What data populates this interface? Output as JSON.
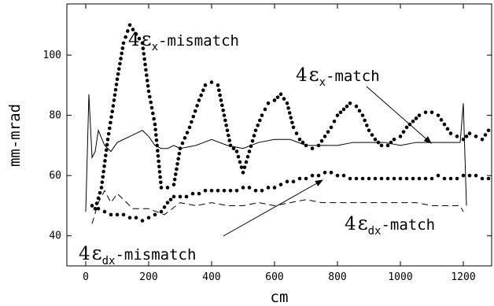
{
  "chart_data": {
    "type": "line",
    "xlabel": "cm",
    "ylabel": "mm-mrad",
    "xlim": [
      -60,
      1290
    ],
    "ylim": [
      30,
      117
    ],
    "xticks": [
      0,
      200,
      400,
      600,
      800,
      1000,
      1200
    ],
    "yticks": [
      40,
      60,
      80,
      100
    ],
    "series": [
      {
        "style": "solid",
        "x": [
          0,
          10,
          20,
          30,
          40,
          60,
          80,
          100,
          120,
          140,
          160,
          180,
          200,
          220,
          240,
          260,
          280,
          300,
          350,
          400,
          450,
          500,
          550,
          600,
          650,
          700,
          750,
          800,
          850,
          900,
          950,
          1000,
          1050,
          1100,
          1150,
          1190,
          1200,
          1210
        ],
        "y": [
          48,
          87,
          66,
          68,
          75,
          70,
          68,
          71,
          72,
          73,
          74,
          75,
          73,
          70,
          69,
          69,
          70,
          69,
          70,
          72,
          70,
          69,
          71,
          72,
          72,
          70,
          70,
          70,
          71,
          71,
          71,
          70,
          71,
          71,
          71,
          71,
          84,
          50
        ]
      },
      {
        "style": "dashed",
        "x": [
          20,
          40,
          60,
          80,
          100,
          150,
          200,
          250,
          300,
          350,
          400,
          450,
          500,
          550,
          600,
          650,
          700,
          750,
          800,
          850,
          900,
          950,
          1000,
          1050,
          1100,
          1150,
          1190,
          1200
        ],
        "y": [
          44,
          51,
          55,
          51,
          54,
          49,
          49,
          47,
          51,
          50,
          51,
          50,
          50,
          51,
          50,
          51,
          52,
          51,
          51,
          51,
          51,
          51,
          51,
          51,
          50,
          50,
          50,
          48
        ]
      },
      {
        "style": "dots",
        "x": [
          30,
          50,
          70,
          90,
          100,
          120,
          140,
          160,
          180,
          200,
          220,
          240,
          260,
          280,
          300,
          330,
          360,
          380,
          400,
          420,
          440,
          460,
          480,
          500,
          520,
          540,
          560,
          580,
          600,
          620,
          640,
          660,
          680,
          700,
          720,
          740,
          760,
          780,
          800,
          820,
          840,
          860,
          880,
          900,
          920,
          940,
          960,
          980,
          1000,
          1020,
          1040,
          1060,
          1080,
          1100,
          1120,
          1140,
          1160,
          1180,
          1200,
          1220,
          1240,
          1260,
          1280
        ],
        "y": [
          49,
          56,
          72,
          85,
          92,
          104,
          110,
          107,
          104,
          88,
          77,
          56,
          56,
          57,
          69,
          76,
          85,
          90,
          91,
          90,
          80,
          70,
          68,
          61,
          68,
          75,
          80,
          84,
          85,
          87,
          84,
          76,
          72,
          70,
          69,
          70,
          73,
          76,
          80,
          82,
          84,
          83,
          80,
          75,
          72,
          70,
          70,
          72,
          73,
          76,
          78,
          80,
          81,
          81,
          80,
          77,
          74,
          73,
          72,
          74,
          73,
          72,
          75
        ]
      },
      {
        "style": "dots",
        "x": [
          20,
          40,
          60,
          80,
          100,
          120,
          140,
          160,
          180,
          200,
          220,
          240,
          260,
          280,
          300,
          320,
          340,
          360,
          380,
          400,
          420,
          440,
          460,
          480,
          500,
          520,
          540,
          560,
          580,
          600,
          620,
          640,
          660,
          680,
          700,
          720,
          740,
          760,
          780,
          800,
          820,
          840,
          860,
          880,
          900,
          920,
          940,
          960,
          980,
          1000,
          1020,
          1040,
          1060,
          1080,
          1100,
          1120,
          1140,
          1160,
          1180,
          1200,
          1220,
          1240,
          1260,
          1280
        ],
        "y": [
          50,
          49,
          48,
          47,
          47,
          47,
          46,
          46,
          45,
          46,
          47,
          48,
          51,
          53,
          53,
          53,
          54,
          54,
          55,
          55,
          55,
          55,
          55,
          55,
          56,
          56,
          55,
          55,
          56,
          56,
          57,
          58,
          58,
          59,
          59,
          60,
          60,
          61,
          61,
          60,
          60,
          59,
          59,
          59,
          59,
          59,
          59,
          59,
          59,
          59,
          59,
          59,
          59,
          59,
          59,
          60,
          59,
          59,
          59,
          60,
          60,
          60,
          59,
          59
        ]
      }
    ],
    "annotations": [
      {
        "prefix": "4",
        "greek": "ε",
        "sub": "x",
        "suffix": "-mismatch",
        "arrow": false
      },
      {
        "prefix": "4",
        "greek": "ε",
        "sub": "x",
        "suffix": "-match",
        "arrow": true
      },
      {
        "prefix": "4",
        "greek": "ε",
        "sub": "dx",
        "suffix": "-mismatch",
        "arrow": true
      },
      {
        "prefix": "4",
        "greek": "ε",
        "sub": "dx",
        "suffix": "-match",
        "arrow": false
      }
    ]
  }
}
